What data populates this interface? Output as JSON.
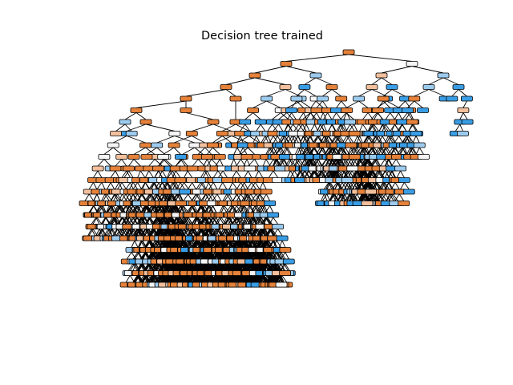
{
  "figure": {
    "title": "Decision tree trained"
  },
  "colors": {
    "class_a": "#e58139",
    "class_a_light": "#f2c09c",
    "neutral": "#f5f5f5",
    "class_b_light": "#9ccbee",
    "class_b": "#399de5",
    "edge": "#000000",
    "background": "#ffffff"
  },
  "tree": {
    "description_note": "",
    "leaf_shades": [
      "class_a",
      "class_a",
      "class_a_light",
      "neutral",
      "class_b_light",
      "class_b"
    ]
  }
}
